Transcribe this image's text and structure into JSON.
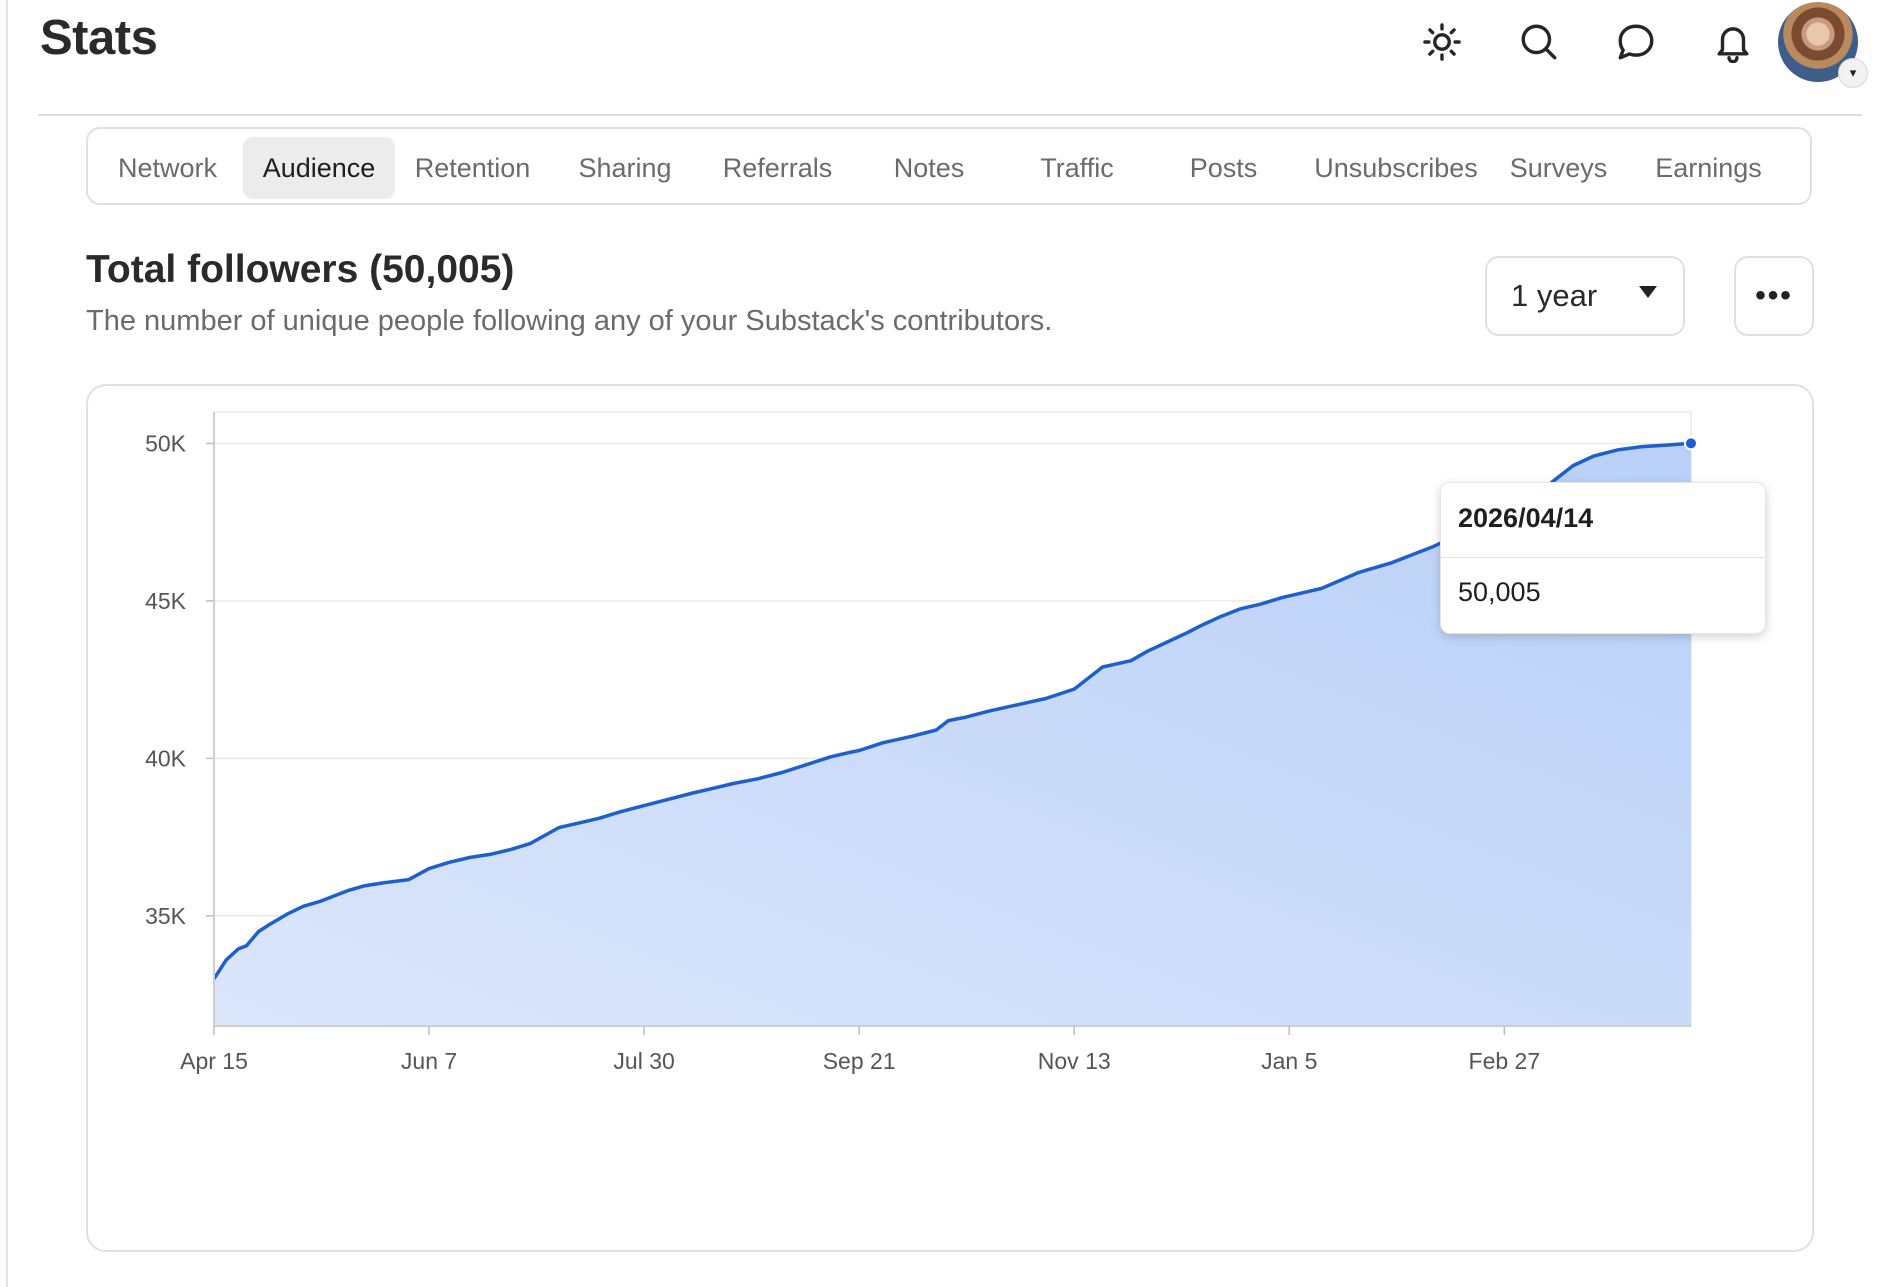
{
  "header": {
    "title": "Stats",
    "icons": [
      "sun-icon",
      "search-icon",
      "chat-bubble-icon",
      "bell-icon"
    ],
    "avatar_caret": "▾"
  },
  "tabs": [
    {
      "label": "Network",
      "active": false
    },
    {
      "label": "Audience",
      "active": true
    },
    {
      "label": "Retention",
      "active": false
    },
    {
      "label": "Sharing",
      "active": false
    },
    {
      "label": "Referrals",
      "active": false
    },
    {
      "label": "Notes",
      "active": false
    },
    {
      "label": "Traffic",
      "active": false
    },
    {
      "label": "Posts",
      "active": false
    },
    {
      "label": "Unsubscribes",
      "active": false
    },
    {
      "label": "Surveys",
      "active": false
    },
    {
      "label": "Earnings",
      "active": false
    }
  ],
  "section": {
    "title": "Total followers (50,005)",
    "subtitle": "The number of unique people following any of your Substack's contributors.",
    "range_value": "1 year",
    "more_label": "•••"
  },
  "tooltip": {
    "date": "2026/04/14",
    "value": "50,005"
  },
  "colors": {
    "line": "#1d5fcf",
    "fill_top": "#b9d0f8",
    "fill_bottom": "#dbe6fb",
    "grid": "#e9e9e9"
  },
  "chart_data": {
    "type": "area",
    "title": "",
    "xlabel": "",
    "ylabel": "",
    "ylim": [
      31500,
      51000
    ],
    "y_ticks": [
      35000,
      40000,
      45000,
      50000
    ],
    "y_tick_labels": [
      "35K",
      "40K",
      "45K",
      "50K"
    ],
    "x_tick_labels": [
      "Apr 15",
      "Jun 7",
      "Jul 30",
      "Sep 21",
      "Nov 13",
      "Jan 5",
      "Feb 27"
    ],
    "x_range_days": [
      0,
      364
    ],
    "x_tick_days": [
      0,
      53,
      106,
      159,
      212,
      265,
      318
    ],
    "grid": true,
    "legend": "none",
    "series": [
      {
        "x_days": [
          0,
          3,
          6,
          8,
          11,
          14,
          18,
          22,
          26,
          29,
          33,
          37,
          42,
          48,
          53,
          58,
          63,
          68,
          73,
          78,
          85,
          90,
          95,
          100,
          106,
          112,
          118,
          123,
          128,
          134,
          140,
          146,
          152,
          157,
          159,
          165,
          172,
          178,
          181,
          185,
          191,
          198,
          205,
          212,
          219,
          226,
          230,
          235,
          240,
          243,
          248,
          252,
          253,
          258,
          263,
          273,
          282,
          290,
          300,
          310,
          320,
          326,
          330,
          335,
          340,
          346,
          352,
          358,
          364
        ],
        "values": [
          33000,
          33600,
          33950,
          34050,
          34500,
          34750,
          35050,
          35300,
          35450,
          35600,
          35800,
          35950,
          36050,
          36150,
          36500,
          36700,
          36850,
          36950,
          37100,
          37300,
          37800,
          37950,
          38100,
          38300,
          38500,
          38700,
          38900,
          39050,
          39200,
          39350,
          39550,
          39800,
          40050,
          40200,
          40250,
          40500,
          40700,
          40900,
          41200,
          41300,
          41500,
          41700,
          41900,
          42200,
          42900,
          43100,
          43400,
          43700,
          44000,
          44200,
          44500,
          44700,
          44750,
          44900,
          45100,
          45400,
          45900,
          46200,
          46700,
          47300,
          47900,
          48350,
          48800,
          49300,
          49600,
          49800,
          49900,
          49950,
          50005
        ]
      }
    ]
  }
}
